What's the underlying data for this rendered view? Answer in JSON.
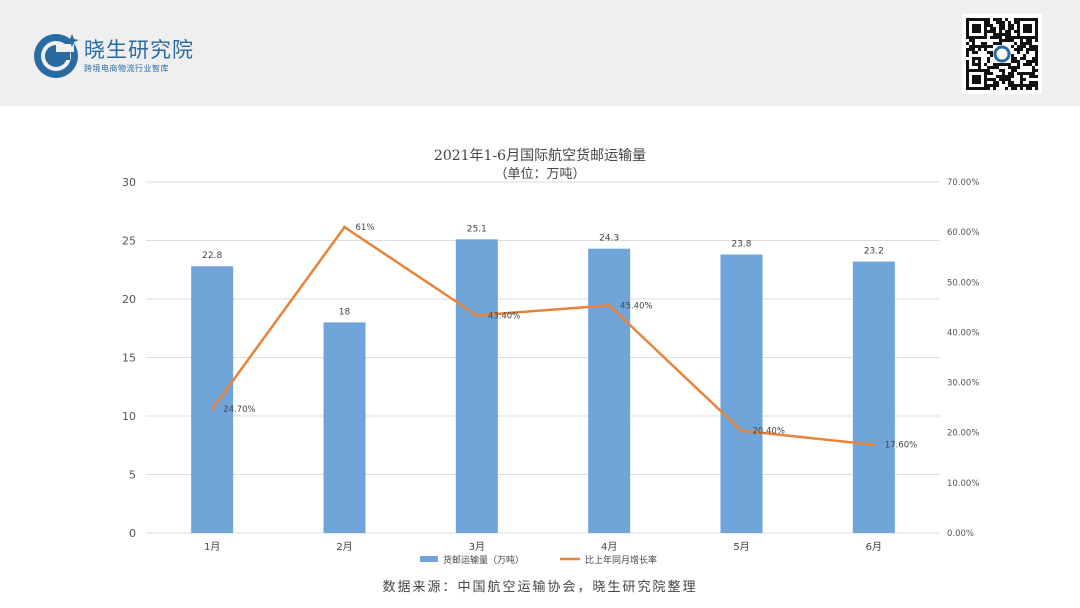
{
  "header": {
    "logo_name": "晓生研究院",
    "logo_tagline": "跨境电商物流行业智库",
    "brand_color": "#2a6aa3"
  },
  "footer": {
    "source": "数据来源：中国航空运输协会，晓生研究院整理"
  },
  "chart_data": {
    "type": "bar",
    "title": "2021年1-6月国际航空货邮运输量",
    "subtitle": "（单位：万吨）",
    "categories": [
      "1月",
      "2月",
      "3月",
      "4月",
      "5月",
      "6月"
    ],
    "series": [
      {
        "name": "货邮运输量（万吨）",
        "type": "bar",
        "axis": "left",
        "color": "#6fa5d9",
        "values": [
          22.8,
          18,
          25.1,
          24.3,
          23.8,
          23.2
        ],
        "labels": [
          "22.8",
          "18",
          "25.1",
          "24.3",
          "23.8",
          "23.2"
        ]
      },
      {
        "name": "比上年同月增长率",
        "type": "line",
        "axis": "right",
        "color": "#e8833a",
        "values": [
          24.7,
          61,
          43.4,
          45.4,
          20.4,
          17.6
        ],
        "labels": [
          "24.70%",
          "61%",
          "43.40%",
          "45.40%",
          "20.40%",
          "17.60%"
        ]
      }
    ],
    "y_left": {
      "range": [
        0,
        30
      ],
      "ticks": [
        "0",
        "5",
        "10",
        "15",
        "20",
        "25",
        "30"
      ]
    },
    "y_right": {
      "range": [
        0,
        70
      ],
      "ticks": [
        "0.00%",
        "10.00%",
        "20.00%",
        "30.00%",
        "40.00%",
        "50.00%",
        "60.00%",
        "70.00%"
      ]
    },
    "grid": true,
    "legend_position": "bottom"
  }
}
